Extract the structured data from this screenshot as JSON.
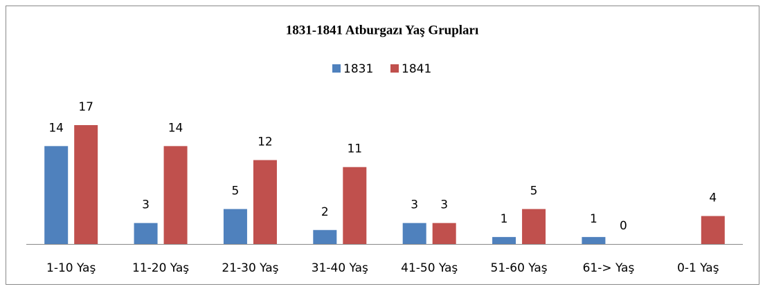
{
  "chart_data": {
    "type": "bar",
    "title": "1831-1841 Atburgazı Yaş Grupları",
    "categories": [
      "1-10 Yaş",
      "11-20 Yaş",
      "21-30 Yaş",
      "31-40 Yaş",
      "41-50 Yaş",
      "51-60 Yaş",
      "61-> Yaş",
      "0-1 Yaş"
    ],
    "series": [
      {
        "name": "1831",
        "color": "#4f81bd",
        "values": [
          14,
          3,
          5,
          2,
          3,
          1,
          1,
          null
        ]
      },
      {
        "name": "1841",
        "color": "#c0504d",
        "values": [
          17,
          14,
          12,
          11,
          3,
          5,
          0,
          4
        ]
      }
    ]
  }
}
